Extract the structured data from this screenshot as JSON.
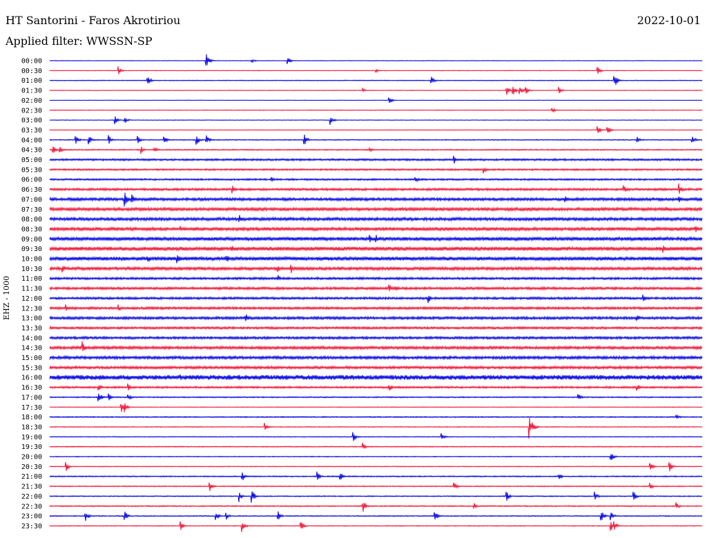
{
  "header": {
    "title": "HT Santorini - Faros Akrotiriou",
    "date": "2022-10-01",
    "filter": "Applied filter: WWSSN-SP"
  },
  "chart_data": {
    "type": "line",
    "title": "HT Santorini - Faros Akrotiriou",
    "ylabel": "EHZ - 1000",
    "xlabel": "",
    "colors": {
      "even": "#0000e0",
      "odd": "#ee1133"
    },
    "row_labels": [
      "00:00",
      "00:30",
      "01:00",
      "01:30",
      "02:00",
      "02:30",
      "03:00",
      "03:30",
      "04:00",
      "04:30",
      "05:00",
      "05:30",
      "06:00",
      "06:30",
      "07:00",
      "07:30",
      "08:00",
      "08:30",
      "09:00",
      "09:30",
      "10:00",
      "10:30",
      "11:00",
      "11:30",
      "12:00",
      "12:30",
      "13:00",
      "13:30",
      "14:00",
      "14:30",
      "15:00",
      "15:30",
      "16:00",
      "16:30",
      "17:00",
      "17:30",
      "18:00",
      "18:30",
      "19:00",
      "19:30",
      "20:00",
      "20:30",
      "21:00",
      "21:30",
      "22:00",
      "22:30",
      "23:00",
      "23:30"
    ],
    "noise_level": [
      0.3,
      0.3,
      0.4,
      0.3,
      0.2,
      0.3,
      0.3,
      0.3,
      0.5,
      0.6,
      1.0,
      0.9,
      0.9,
      1.2,
      1.5,
      1.6,
      1.6,
      1.7,
      1.8,
      2.0,
      1.9,
      1.6,
      1.2,
      1.3,
      1.2,
      1.3,
      1.4,
      1.2,
      1.3,
      1.5,
      1.5,
      1.4,
      2.5,
      1.0,
      0.6,
      0.3,
      0.6,
      0.4,
      0.4,
      0.5,
      0.4,
      0.4,
      0.6,
      0.5,
      0.5,
      0.6,
      0.5,
      0.4
    ],
    "events": [
      [
        [
          0.24,
          7
        ],
        [
          0.365,
          4
        ],
        [
          0.31,
          2
        ]
      ],
      [
        [
          0.105,
          5
        ],
        [
          0.84,
          4
        ],
        [
          0.5,
          2
        ]
      ],
      [
        [
          0.15,
          6
        ],
        [
          0.585,
          4
        ],
        [
          0.865,
          8
        ]
      ],
      [
        [
          0.7,
          5
        ],
        [
          0.71,
          5
        ],
        [
          0.72,
          5
        ],
        [
          0.73,
          4
        ],
        [
          0.78,
          4
        ],
        [
          0.48,
          2
        ]
      ],
      [
        [
          0.52,
          4
        ]
      ],
      [
        [
          0.77,
          3
        ]
      ],
      [
        [
          0.1,
          4
        ],
        [
          0.115,
          4
        ],
        [
          0.43,
          5
        ]
      ],
      [
        [
          0.84,
          4
        ],
        [
          0.855,
          5
        ]
      ],
      [
        [
          0.04,
          6
        ],
        [
          0.06,
          5
        ],
        [
          0.09,
          5
        ],
        [
          0.135,
          4
        ],
        [
          0.175,
          5
        ],
        [
          0.225,
          6
        ],
        [
          0.24,
          5
        ],
        [
          0.39,
          6
        ],
        [
          0.9,
          4
        ],
        [
          0.985,
          4
        ]
      ],
      [
        [
          0.005,
          5
        ],
        [
          0.015,
          4
        ],
        [
          0.14,
          4
        ],
        [
          0.16,
          4
        ],
        [
          0.49,
          3
        ]
      ],
      [
        [
          0.62,
          4
        ]
      ],
      [
        [
          0.665,
          4
        ]
      ],
      [
        [
          0.56,
          4
        ],
        [
          0.34,
          3
        ]
      ],
      [
        [
          0.28,
          4
        ],
        [
          0.88,
          4
        ],
        [
          0.965,
          6
        ]
      ],
      [
        [
          0.115,
          8
        ],
        [
          0.125,
          7
        ],
        [
          0.79,
          4
        ],
        [
          0.965,
          4
        ]
      ],
      [
        [
          0.945,
          4
        ],
        [
          0.83,
          3
        ]
      ],
      [
        [
          0.29,
          5
        ]
      ],
      [
        [
          0.2,
          3
        ],
        [
          0.99,
          4
        ]
      ],
      [
        [
          0.49,
          6
        ],
        [
          0.5,
          5
        ]
      ],
      [
        [
          0.28,
          4
        ],
        [
          0.94,
          4
        ]
      ],
      [
        [
          0.15,
          5
        ],
        [
          0.195,
          6
        ],
        [
          0.27,
          6
        ]
      ],
      [
        [
          0.02,
          4
        ],
        [
          0.37,
          5
        ],
        [
          0.35,
          4
        ]
      ],
      [
        [
          0.35,
          4
        ]
      ],
      [
        [
          0.52,
          5
        ],
        [
          0.53,
          4
        ]
      ],
      [
        [
          0.58,
          5
        ],
        [
          0.91,
          5
        ]
      ],
      [
        [
          0.025,
          4
        ],
        [
          0.105,
          4
        ]
      ],
      [
        [
          0.3,
          5
        ],
        [
          0.9,
          4
        ]
      ],
      [
        [
          0.0,
          2
        ]
      ],
      [
        [
          0.0,
          2
        ]
      ],
      [
        [
          0.05,
          7
        ]
      ],
      [
        [
          0.0,
          2
        ]
      ],
      [
        [
          0.0,
          2
        ]
      ],
      [
        [
          0.2,
          3
        ]
      ],
      [
        [
          0.075,
          4
        ],
        [
          0.12,
          4
        ],
        [
          0.52,
          5
        ],
        [
          0.9,
          4
        ]
      ],
      [
        [
          0.075,
          6
        ],
        [
          0.09,
          4
        ],
        [
          0.12,
          4
        ],
        [
          0.81,
          4
        ]
      ],
      [
        [
          0.11,
          5
        ],
        [
          0.115,
          5
        ]
      ],
      [
        [
          0.96,
          4
        ]
      ],
      [
        [
          0.33,
          4
        ],
        [
          0.735,
          12
        ],
        [
          0.74,
          6
        ]
      ],
      [
        [
          0.465,
          6
        ],
        [
          0.6,
          5
        ]
      ],
      [
        [
          0.48,
          4
        ]
      ],
      [
        [
          0.86,
          5
        ]
      ],
      [
        [
          0.025,
          5
        ],
        [
          0.92,
          5
        ],
        [
          0.95,
          5
        ]
      ],
      [
        [
          0.295,
          5
        ],
        [
          0.41,
          5
        ],
        [
          0.445,
          5
        ],
        [
          0.78,
          4
        ]
      ],
      [
        [
          0.245,
          6
        ],
        [
          0.62,
          4
        ],
        [
          0.92,
          4
        ]
      ],
      [
        [
          0.29,
          6
        ],
        [
          0.31,
          7
        ],
        [
          0.7,
          5
        ],
        [
          0.835,
          5
        ],
        [
          0.895,
          5
        ]
      ],
      [
        [
          0.48,
          7
        ],
        [
          0.65,
          4
        ],
        [
          0.96,
          4
        ]
      ],
      [
        [
          0.055,
          5
        ],
        [
          0.115,
          5
        ],
        [
          0.255,
          5
        ],
        [
          0.27,
          5
        ],
        [
          0.35,
          5
        ],
        [
          0.59,
          6
        ],
        [
          0.845,
          6
        ],
        [
          0.86,
          5
        ]
      ],
      [
        [
          0.2,
          5
        ],
        [
          0.295,
          6
        ],
        [
          0.385,
          5
        ],
        [
          0.86,
          6
        ],
        [
          0.865,
          5
        ]
      ]
    ]
  }
}
